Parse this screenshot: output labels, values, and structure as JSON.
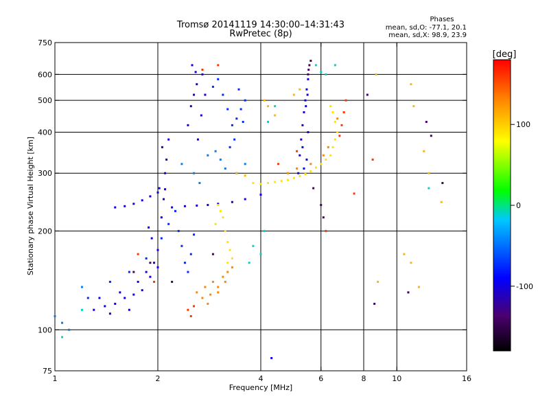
{
  "chart_data": {
    "type": "scatter",
    "title": "Tromsø 20141119 14:30:00–14:31:43",
    "subtitle": "RwPretec (8p)",
    "xlabel": "Frequency [MHz]",
    "ylabel": "Stationary phase Virtual Height [km]",
    "x_scale": "log",
    "y_scale": "log",
    "xlim": [
      1,
      16
    ],
    "ylim": [
      75,
      750
    ],
    "x_ticks": [
      1,
      2,
      4,
      6,
      8,
      10,
      16
    ],
    "x_tick_labels": [
      "1",
      "2",
      "4",
      "6",
      "8",
      "10",
      "16"
    ],
    "x_gridlines": [
      2,
      4,
      6,
      8,
      10
    ],
    "y_ticks": [
      75,
      100,
      200,
      300,
      400,
      500,
      600,
      750
    ],
    "y_tick_labels": [
      "75",
      "100",
      "200",
      "300",
      "400",
      "500",
      "600",
      "750"
    ],
    "y_gridlines": [
      100,
      200,
      300,
      400,
      500,
      600
    ],
    "grid": true,
    "phases_legend": {
      "title": "Phases",
      "line1": "mean, sd,O: -77.1, 20.1",
      "line2": "mean, sd,X:  98.9, 23.9"
    },
    "colorbar": {
      "label": "[deg]",
      "range": [
        -180,
        180
      ],
      "ticks": [
        100,
        0,
        -100
      ],
      "tick_labels": [
        "100",
        "0",
        "-100"
      ],
      "colormap": "rainbow"
    },
    "series": [
      {
        "phase_deg": -100,
        "points": [
          [
            1.3,
            115
          ],
          [
            1.35,
            125
          ],
          [
            1.4,
            118
          ],
          [
            1.45,
            112
          ],
          [
            1.5,
            120
          ],
          [
            1.55,
            130
          ],
          [
            1.6,
            125
          ],
          [
            1.65,
            115
          ],
          [
            1.7,
            128
          ],
          [
            1.75,
            140
          ],
          [
            1.8,
            132
          ],
          [
            1.85,
            150
          ],
          [
            1.9,
            145
          ],
          [
            1.95,
            160
          ],
          [
            2.0,
            155
          ],
          [
            2.0,
            175
          ],
          [
            1.92,
            190
          ],
          [
            1.88,
            205
          ],
          [
            2.05,
            220
          ],
          [
            2.08,
            250
          ],
          [
            2.02,
            270
          ],
          [
            2.1,
            300
          ],
          [
            2.12,
            330
          ],
          [
            2.06,
            360
          ],
          [
            2.15,
            380
          ],
          [
            1.5,
            236
          ],
          [
            1.6,
            238
          ],
          [
            1.7,
            242
          ],
          [
            1.8,
            248
          ],
          [
            1.9,
            255
          ],
          [
            2.0,
            262
          ],
          [
            2.1,
            268
          ],
          [
            2.2,
            236
          ],
          [
            2.4,
            238
          ],
          [
            2.6,
            239
          ],
          [
            2.8,
            240
          ],
          [
            3.0,
            242
          ],
          [
            3.3,
            245
          ],
          [
            3.6,
            250
          ],
          [
            4.0,
            258
          ],
          [
            2.45,
            420
          ],
          [
            2.5,
            480
          ],
          [
            2.55,
            520
          ],
          [
            2.6,
            560
          ],
          [
            2.58,
            610
          ],
          [
            2.52,
            640
          ],
          [
            2.7,
            600
          ],
          [
            2.75,
            520
          ],
          [
            2.68,
            450
          ],
          [
            2.62,
            380
          ],
          [
            5.15,
            300
          ],
          [
            5.2,
            340
          ],
          [
            5.25,
            380
          ],
          [
            5.3,
            420
          ],
          [
            5.35,
            460
          ],
          [
            5.4,
            500
          ],
          [
            5.45,
            540
          ],
          [
            5.5,
            580
          ],
          [
            5.35,
            310
          ],
          [
            5.45,
            330
          ],
          [
            5.3,
            360
          ],
          [
            5.5,
            400
          ],
          [
            5.42,
            480
          ],
          [
            5.48,
            520
          ],
          [
            4.3,
            82
          ]
        ]
      },
      {
        "phase_deg": -75,
        "points": [
          [
            1.25,
            125
          ],
          [
            1.45,
            140
          ],
          [
            1.65,
            150
          ],
          [
            1.85,
            165
          ],
          [
            2.05,
            190
          ],
          [
            2.15,
            210
          ],
          [
            2.25,
            230
          ],
          [
            2.3,
            200
          ],
          [
            2.35,
            180
          ],
          [
            2.4,
            160
          ],
          [
            2.45,
            150
          ],
          [
            2.5,
            170
          ],
          [
            2.55,
            195
          ],
          [
            2.9,
            550
          ],
          [
            3.0,
            580
          ],
          [
            3.1,
            520
          ],
          [
            3.2,
            470
          ],
          [
            3.3,
            420
          ],
          [
            3.4,
            440
          ],
          [
            3.5,
            470
          ],
          [
            3.55,
            430
          ],
          [
            3.6,
            500
          ],
          [
            3.45,
            540
          ],
          [
            3.35,
            380
          ],
          [
            3.25,
            360
          ]
        ]
      },
      {
        "phase_deg": -45,
        "points": [
          [
            1.05,
            105
          ],
          [
            1.1,
            100
          ],
          [
            1.0,
            110
          ],
          [
            1.2,
            135
          ],
          [
            2.35,
            320
          ],
          [
            2.55,
            300
          ],
          [
            2.65,
            280
          ],
          [
            2.95,
            350
          ],
          [
            3.05,
            330
          ],
          [
            3.15,
            310
          ],
          [
            3.4,
            300
          ],
          [
            3.6,
            320
          ],
          [
            2.8,
            340
          ]
        ]
      },
      {
        "phase_deg": 90,
        "points": [
          [
            3.8,
            280
          ],
          [
            4.0,
            278
          ],
          [
            4.2,
            280
          ],
          [
            4.4,
            282
          ],
          [
            4.6,
            284
          ],
          [
            4.8,
            286
          ],
          [
            5.0,
            290
          ],
          [
            5.2,
            294
          ],
          [
            5.4,
            298
          ],
          [
            5.6,
            304
          ],
          [
            5.8,
            312
          ],
          [
            6.0,
            320
          ],
          [
            6.2,
            330
          ],
          [
            6.4,
            340
          ],
          [
            6.5,
            360
          ],
          [
            6.6,
            380
          ],
          [
            6.7,
            400
          ],
          [
            6.6,
            430
          ],
          [
            6.5,
            460
          ],
          [
            6.4,
            480
          ],
          [
            3.1,
            220
          ],
          [
            3.15,
            200
          ],
          [
            3.2,
            185
          ],
          [
            3.25,
            175
          ],
          [
            3.3,
            165
          ],
          [
            3.2,
            160
          ],
          [
            3.0,
            240
          ],
          [
            3.05,
            230
          ],
          [
            2.95,
            210
          ]
        ]
      },
      {
        "phase_deg": 130,
        "points": [
          [
            2.6,
            130
          ],
          [
            2.7,
            125
          ],
          [
            2.8,
            120
          ],
          [
            2.9,
            140
          ],
          [
            3.0,
            135
          ],
          [
            3.1,
            145
          ],
          [
            3.2,
            150
          ],
          [
            3.3,
            155
          ],
          [
            3.15,
            140
          ],
          [
            3.0,
            130
          ],
          [
            2.85,
            128
          ],
          [
            2.75,
            135
          ],
          [
            4.8,
            300
          ],
          [
            5.1,
            310
          ],
          [
            5.6,
            320
          ],
          [
            6.1,
            340
          ],
          [
            6.3,
            360
          ],
          [
            6.7,
            440
          ]
        ]
      },
      {
        "phase_deg": 160,
        "points": [
          [
            2.5,
            110
          ],
          [
            2.45,
            115
          ],
          [
            2.55,
            118
          ],
          [
            1.95,
            140
          ],
          [
            1.75,
            170
          ],
          [
            2.7,
            620
          ],
          [
            3.0,
            640
          ],
          [
            6.8,
            390
          ],
          [
            6.9,
            420
          ],
          [
            7.0,
            460
          ],
          [
            7.1,
            500
          ],
          [
            6.2,
            200
          ],
          [
            7.5,
            260
          ],
          [
            5.1,
            350
          ],
          [
            4.5,
            320
          ],
          [
            8.5,
            330
          ]
        ]
      },
      {
        "phase_deg": 110,
        "points": [
          [
            3.4,
            300
          ],
          [
            3.6,
            295
          ],
          [
            4.1,
            500
          ],
          [
            4.2,
            480
          ],
          [
            4.4,
            450
          ],
          [
            8.7,
            600
          ],
          [
            11.0,
            560
          ],
          [
            11.2,
            480
          ],
          [
            12.0,
            350
          ],
          [
            12.4,
            300
          ],
          [
            13.5,
            245
          ],
          [
            10.5,
            170
          ],
          [
            11.0,
            160
          ],
          [
            8.8,
            140
          ],
          [
            11.6,
            135
          ],
          [
            5.2,
            540
          ],
          [
            5.0,
            520
          ]
        ]
      },
      {
        "phase_deg": -10,
        "points": [
          [
            4.2,
            430
          ],
          [
            4.4,
            480
          ],
          [
            5.8,
            640
          ],
          [
            6.0,
            610
          ],
          [
            6.2,
            600
          ],
          [
            6.6,
            640
          ],
          [
            3.8,
            180
          ],
          [
            4.1,
            200
          ],
          [
            3.7,
            160
          ],
          [
            4.0,
            170
          ],
          [
            1.05,
            95
          ],
          [
            1.2,
            115
          ],
          [
            12.4,
            270
          ]
        ]
      },
      {
        "phase_deg": -140,
        "points": [
          [
            5.55,
            640
          ],
          [
            5.6,
            660
          ],
          [
            5.5,
            600
          ],
          [
            5.52,
            620
          ],
          [
            8.2,
            520
          ],
          [
            12.2,
            430
          ],
          [
            12.6,
            390
          ],
          [
            13.6,
            280
          ],
          [
            6.0,
            240
          ],
          [
            6.1,
            220
          ],
          [
            5.7,
            270
          ],
          [
            1.9,
            160
          ],
          [
            1.7,
            150
          ],
          [
            2.2,
            140
          ],
          [
            2.9,
            170
          ],
          [
            8.6,
            120
          ],
          [
            10.8,
            130
          ]
        ]
      }
    ]
  }
}
